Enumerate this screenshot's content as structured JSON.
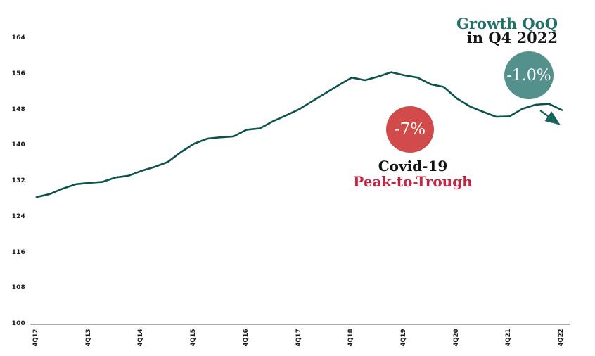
{
  "chart_data": {
    "type": "line",
    "title": "",
    "x": [
      "4Q12",
      "1Q13",
      "2Q13",
      "3Q13",
      "4Q13",
      "1Q14",
      "2Q14",
      "3Q14",
      "4Q14",
      "1Q15",
      "2Q15",
      "3Q15",
      "4Q15",
      "1Q16",
      "2Q16",
      "3Q16",
      "4Q16",
      "1Q17",
      "2Q17",
      "3Q17",
      "4Q17",
      "1Q18",
      "2Q18",
      "3Q18",
      "4Q18",
      "1Q19",
      "2Q19",
      "3Q19",
      "4Q19",
      "1Q20",
      "2Q20",
      "3Q20",
      "4Q20",
      "1Q21",
      "2Q21",
      "3Q21",
      "4Q21",
      "1Q22",
      "2Q22",
      "3Q22",
      "4Q22"
    ],
    "values": [
      128.5,
      129.2,
      130.4,
      131.4,
      131.7,
      131.9,
      132.9,
      133.3,
      134.4,
      135.3,
      136.4,
      138.6,
      140.5,
      141.6,
      141.9,
      142.1,
      143.6,
      143.9,
      145.5,
      146.8,
      148.2,
      150.0,
      151.8,
      153.6,
      155.3,
      154.7,
      155.5,
      156.5,
      155.8,
      155.3,
      153.8,
      153.2,
      150.6,
      148.8,
      147.6,
      146.5,
      146.6,
      148.3,
      149.2,
      149.4,
      148.0
    ],
    "x_tick_labels": [
      "4Q12",
      "4Q13",
      "4Q14",
      "4Q15",
      "4Q16",
      "4Q17",
      "4Q18",
      "4Q19",
      "4Q20",
      "4Q21",
      "4Q22"
    ],
    "y_ticks": [
      164,
      156,
      148,
      140,
      132,
      124,
      116,
      108,
      100
    ],
    "ylim": [
      100,
      164
    ],
    "grid": false,
    "legend": "none",
    "line_color": "#0d534d",
    "axis_color": "#adadad",
    "arrow_color": "#1b635d"
  },
  "annotations": {
    "covid": {
      "badge": "-7%",
      "badge_color": "#d24b4b",
      "line1": "Covid-19",
      "line1_color": "#111111",
      "line2": "Peak-to-Trough",
      "line2_color": "#c22442"
    },
    "growth": {
      "badge": "-1.0%",
      "badge_color": "#54908c",
      "line1": "Growth QoQ",
      "line1_color": "#21706a",
      "line2": "in Q4 2022",
      "line2_color": "#151515"
    }
  }
}
